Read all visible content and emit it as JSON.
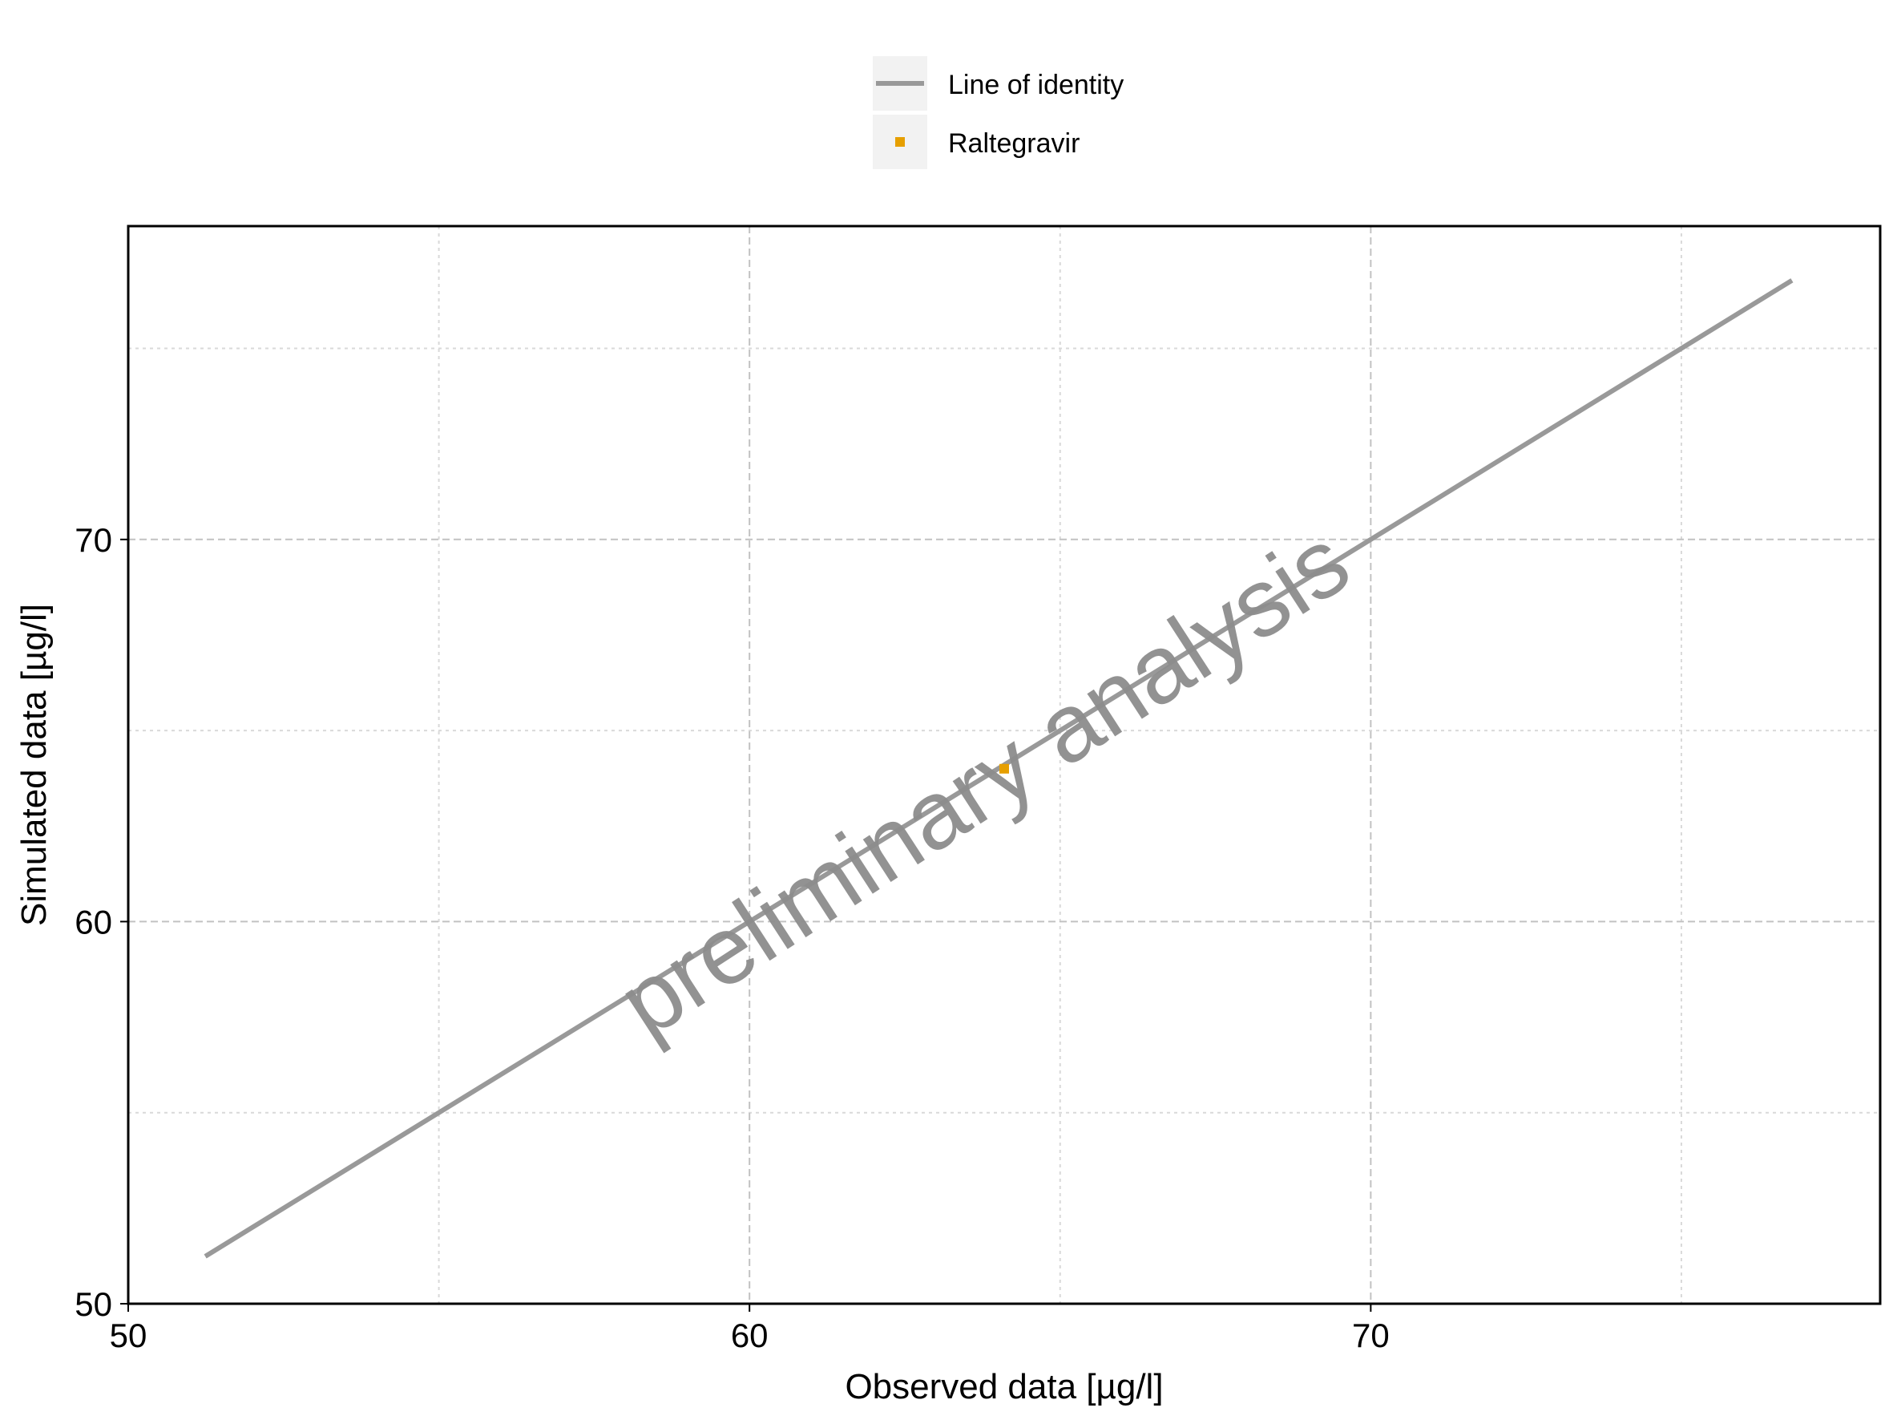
{
  "chart_data": {
    "type": "scatter",
    "title": "",
    "xlabel": "Observed data [µg/l]",
    "ylabel": "Simulated data [µg/l]",
    "xlim": [
      50,
      78.2
    ],
    "ylim": [
      50,
      78.2
    ],
    "x_ticks": [
      50,
      60,
      70
    ],
    "y_ticks": [
      50,
      60,
      70
    ],
    "x_minor_grid": [
      55,
      65,
      75
    ],
    "y_minor_grid": [
      55,
      65,
      75
    ],
    "grid": true,
    "legend_position": "top-center",
    "identity_line": {
      "name": "Line of identity",
      "x": [
        51.24,
        76.78
      ],
      "y": [
        51.24,
        76.78
      ],
      "color": "#999999"
    },
    "series": [
      {
        "name": "Raltegravir",
        "color": "#E69F00",
        "points": [
          {
            "x": 64.1,
            "y": 64.0
          }
        ]
      }
    ],
    "watermark": "preliminary analysis"
  }
}
